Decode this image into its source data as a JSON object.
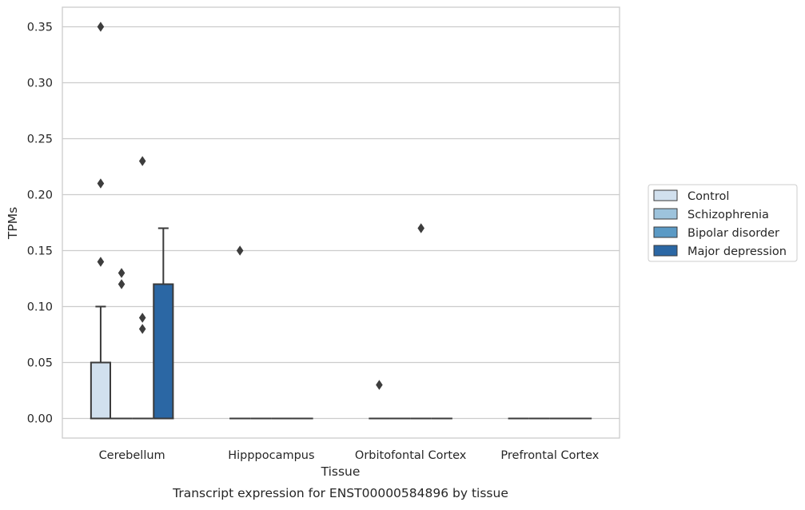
{
  "chart_data": {
    "type": "box",
    "xlabel": "Tissue",
    "ylabel": "TPMs",
    "caption": "Transcript expression for ENST00000584896 by tissue",
    "ylim": [
      -0.0175,
      0.3675
    ],
    "yticks": [
      0.0,
      0.05,
      0.1,
      0.15,
      0.2,
      0.25,
      0.3,
      0.35
    ],
    "ytick_labels": [
      "0.00",
      "0.05",
      "0.10",
      "0.15",
      "0.20",
      "0.25",
      "0.30",
      "0.35"
    ],
    "grid": "horizontal",
    "legend_position": "right",
    "categories": [
      "Cerebellum",
      "Hipppocampus",
      "Orbitofontal Cortex",
      "Prefrontal Cortex"
    ],
    "series": [
      {
        "name": "Control",
        "color": "#d1e0ee",
        "boxes": [
          {
            "q1": 0.0,
            "median": 0.0,
            "q3": 0.05,
            "whisker_low": 0.0,
            "whisker_high": 0.1,
            "outliers": [
              0.35,
              0.21,
              0.14
            ]
          },
          {
            "q1": 0.0,
            "median": 0.0,
            "q3": 0.0,
            "whisker_low": 0.0,
            "whisker_high": 0.0,
            "outliers": [
              0.15
            ]
          },
          {
            "q1": 0.0,
            "median": 0.0,
            "q3": 0.0,
            "whisker_low": 0.0,
            "whisker_high": 0.0,
            "outliers": [
              0.03
            ]
          },
          {
            "q1": 0.0,
            "median": 0.0,
            "q3": 0.0,
            "whisker_low": 0.0,
            "whisker_high": 0.0,
            "outliers": []
          }
        ]
      },
      {
        "name": "Schizophrenia",
        "color": "#9dc3dc",
        "boxes": [
          {
            "q1": 0.0,
            "median": 0.0,
            "q3": 0.0,
            "whisker_low": 0.0,
            "whisker_high": 0.0,
            "outliers": [
              0.13,
              0.12
            ]
          },
          {
            "q1": 0.0,
            "median": 0.0,
            "q3": 0.0,
            "whisker_low": 0.0,
            "whisker_high": 0.0,
            "outliers": []
          },
          {
            "q1": 0.0,
            "median": 0.0,
            "q3": 0.0,
            "whisker_low": 0.0,
            "whisker_high": 0.0,
            "outliers": []
          },
          {
            "q1": 0.0,
            "median": 0.0,
            "q3": 0.0,
            "whisker_low": 0.0,
            "whisker_high": 0.0,
            "outliers": []
          }
        ]
      },
      {
        "name": "Bipolar disorder",
        "color": "#5b9ac5",
        "boxes": [
          {
            "q1": 0.0,
            "median": 0.0,
            "q3": 0.0,
            "whisker_low": 0.0,
            "whisker_high": 0.0,
            "outliers": [
              0.23,
              0.09,
              0.08
            ]
          },
          {
            "q1": 0.0,
            "median": 0.0,
            "q3": 0.0,
            "whisker_low": 0.0,
            "whisker_high": 0.0,
            "outliers": []
          },
          {
            "q1": 0.0,
            "median": 0.0,
            "q3": 0.0,
            "whisker_low": 0.0,
            "whisker_high": 0.0,
            "outliers": [
              0.17
            ]
          },
          {
            "q1": 0.0,
            "median": 0.0,
            "q3": 0.0,
            "whisker_low": 0.0,
            "whisker_high": 0.0,
            "outliers": []
          }
        ]
      },
      {
        "name": "Major depression",
        "color": "#2b67a4",
        "boxes": [
          {
            "q1": 0.0,
            "median": 0.0,
            "q3": 0.12,
            "whisker_low": 0.0,
            "whisker_high": 0.17,
            "outliers": []
          },
          {
            "q1": 0.0,
            "median": 0.0,
            "q3": 0.0,
            "whisker_low": 0.0,
            "whisker_high": 0.0,
            "outliers": []
          },
          {
            "q1": 0.0,
            "median": 0.0,
            "q3": 0.0,
            "whisker_low": 0.0,
            "whisker_high": 0.0,
            "outliers": []
          },
          {
            "q1": 0.0,
            "median": 0.0,
            "q3": 0.0,
            "whisker_low": 0.0,
            "whisker_high": 0.0,
            "outliers": []
          }
        ]
      }
    ]
  }
}
